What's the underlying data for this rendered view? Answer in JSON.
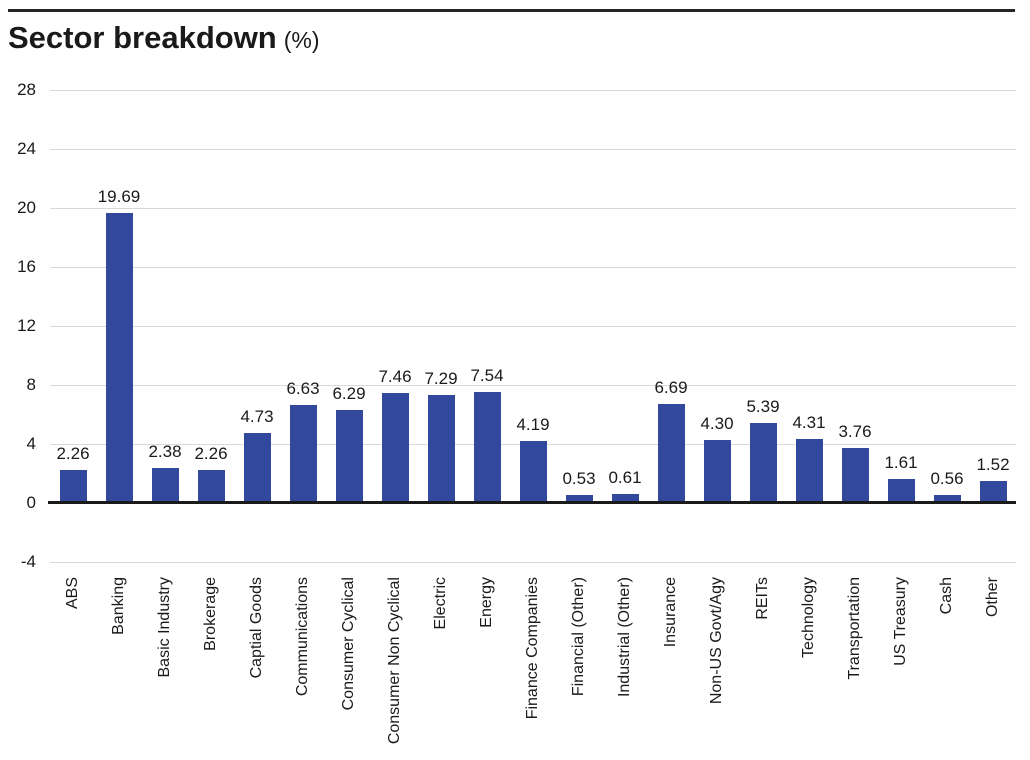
{
  "page": {
    "title_main": "Sector breakdown",
    "title_unit": "(%)"
  },
  "chart_data": {
    "type": "bar",
    "title": "Sector breakdown (%)",
    "categories": [
      "ABS",
      "Banking",
      "Basic Industry",
      "Brokerage",
      "Captial Goods",
      "Communications",
      "Consumer Cyclical",
      "Consumer Non Cyclical",
      "Electric",
      "Energy",
      "Finance Companies",
      "Financial (Other)",
      "Industrial (Other)",
      "Insurance",
      "Non-US Govt/Agy",
      "REITs",
      "Technology",
      "Transportation",
      "US Treasury",
      "Cash",
      "Other"
    ],
    "values": [
      2.26,
      19.69,
      2.38,
      2.26,
      4.73,
      6.63,
      6.29,
      7.46,
      7.29,
      7.54,
      4.19,
      0.53,
      0.61,
      6.69,
      4.3,
      5.39,
      4.31,
      3.76,
      1.61,
      0.56,
      1.52
    ],
    "value_labels": [
      "2.26",
      "19.69",
      "2.38",
      "2.26",
      "4.73",
      "6.63",
      "6.29",
      "7.46",
      "7.29",
      "7.54",
      "4.19",
      "0.53",
      "0.61",
      "6.69",
      "4.30",
      "5.39",
      "4.31",
      "3.76",
      "1.61",
      "0.56",
      "1.52"
    ],
    "y_ticks": [
      28,
      24,
      20,
      16,
      12,
      8,
      4,
      0,
      -4
    ],
    "ylim": [
      -4,
      28
    ],
    "xlabel": "",
    "ylabel": "",
    "grid": "horizontal",
    "legend": "none",
    "x_label_rotation_deg": 90,
    "colors": {
      "bar": "#31489C",
      "gridline": "#D9D9D9",
      "zero_axis": "#1A1A1A",
      "text": "#1A1A1A",
      "top_rule": "#262626"
    }
  }
}
